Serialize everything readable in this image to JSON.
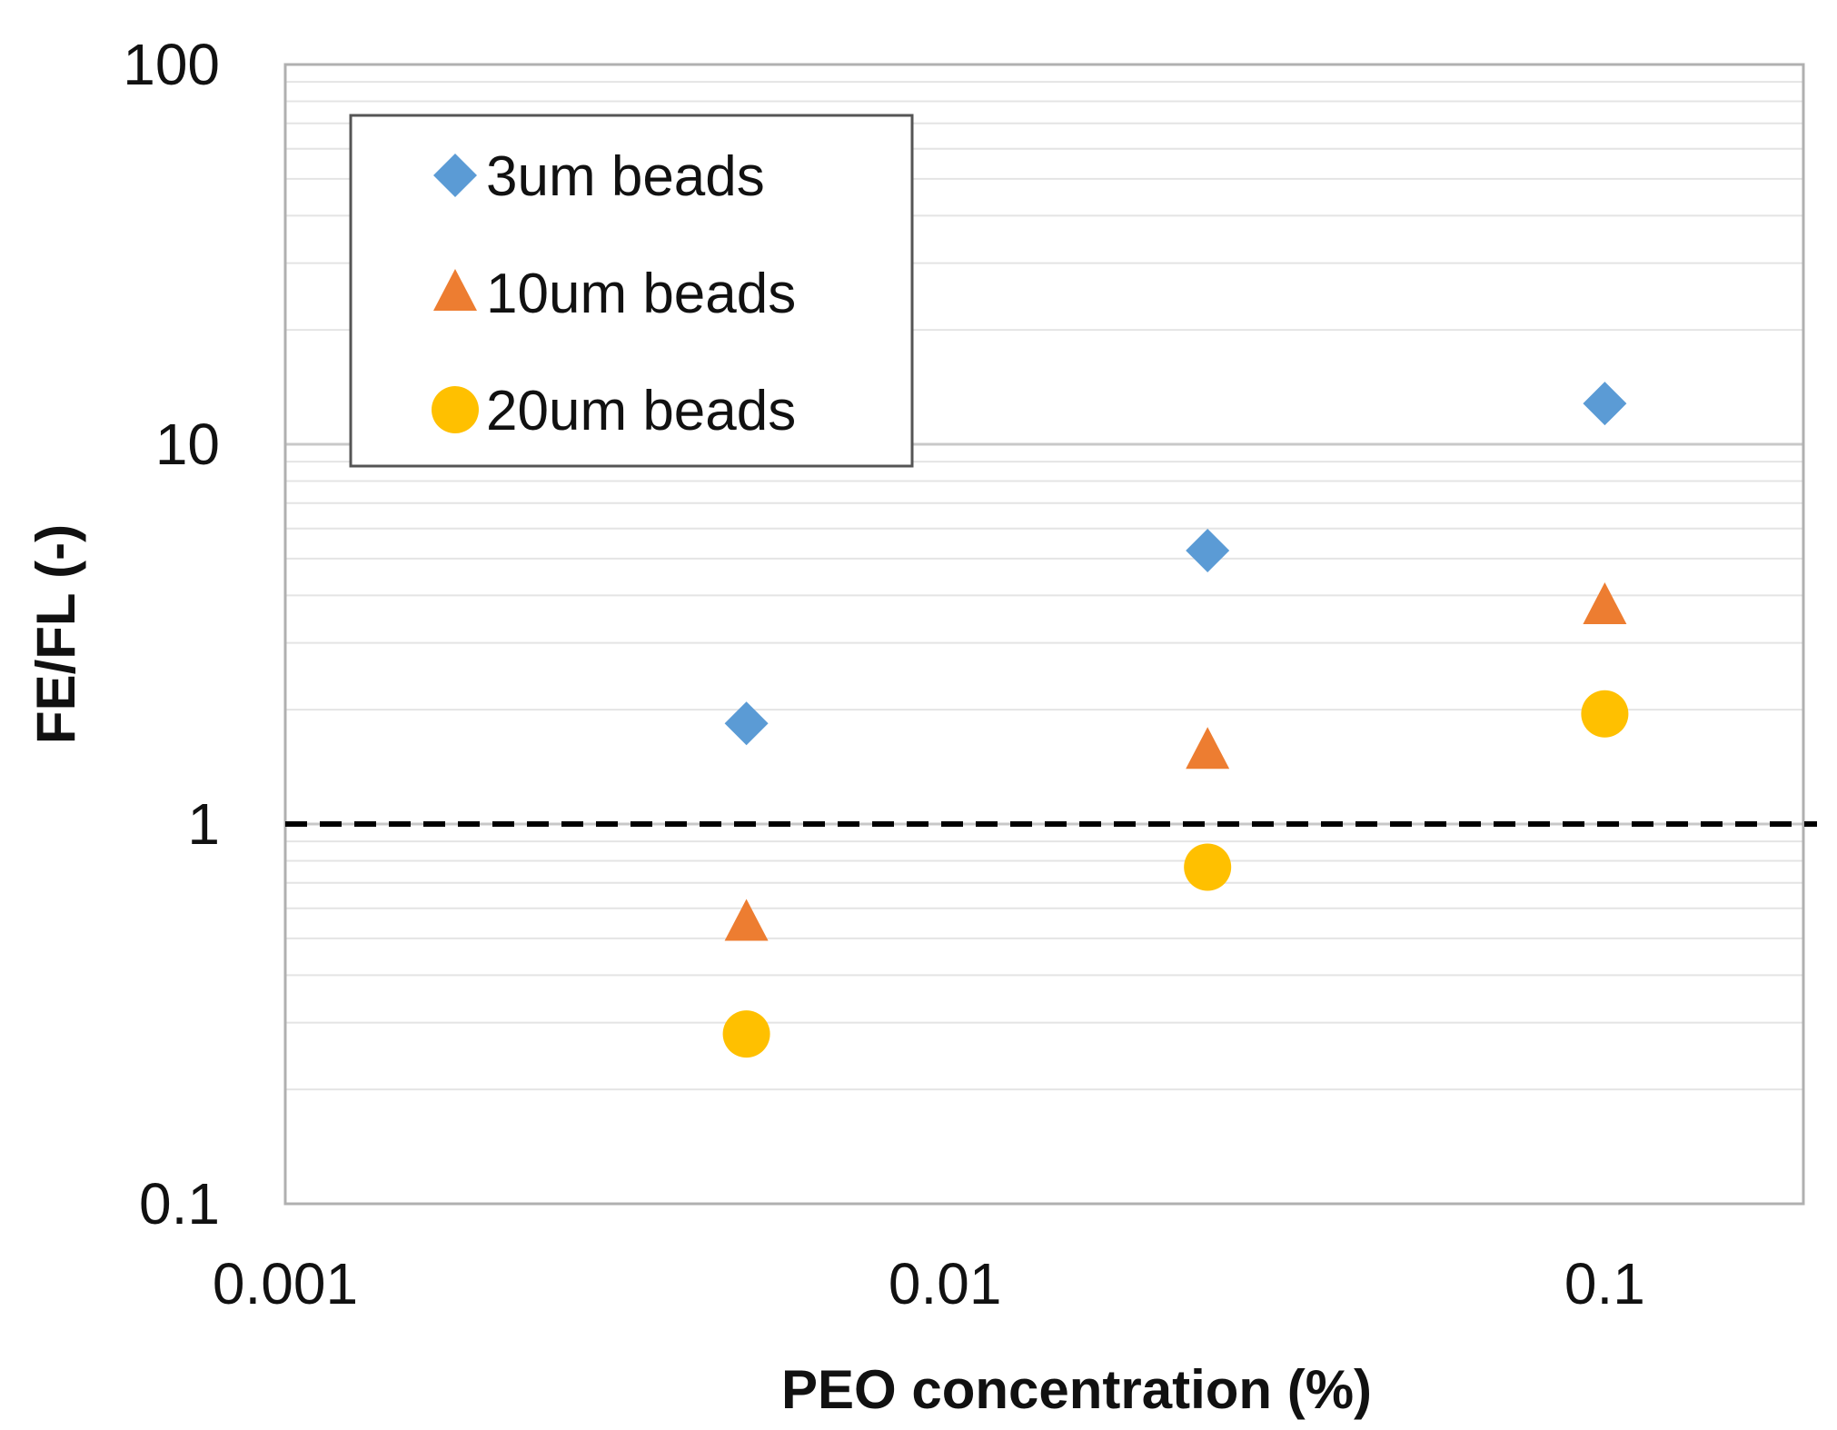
{
  "chart_data": {
    "type": "scatter",
    "title": "",
    "xlabel": "PEO concentration (%)",
    "ylabel": "FE/FL (-)",
    "xscale": "log",
    "yscale": "log",
    "xlim": [
      0.001,
      0.2
    ],
    "ylim": [
      0.1,
      100
    ],
    "xticks": [
      0.001,
      0.01,
      0.1
    ],
    "xtick_labels": [
      "0.001",
      "0.01",
      "0.1"
    ],
    "yticks": [
      0.1,
      1,
      10,
      100
    ],
    "ytick_labels": [
      "0.1",
      "1",
      "10",
      "100"
    ],
    "grid": true,
    "legend_position": "top-left",
    "reference_line": {
      "y": 1,
      "style": "dashed",
      "color": "#000000"
    },
    "series": [
      {
        "name": "3um beads",
        "marker": "diamond",
        "color": "#5B9BD5",
        "x": [
          0.005,
          0.025,
          0.1
        ],
        "y": [
          1.84,
          5.25,
          12.8
        ]
      },
      {
        "name": "10um beads",
        "marker": "triangle",
        "color": "#ED7D31",
        "x": [
          0.005,
          0.025,
          0.1
        ],
        "y": [
          0.55,
          1.56,
          3.75
        ]
      },
      {
        "name": "20um beads",
        "marker": "circle",
        "color": "#FFC000",
        "x": [
          0.005,
          0.025,
          0.1
        ],
        "y": [
          0.28,
          0.77,
          1.95
        ]
      }
    ]
  }
}
